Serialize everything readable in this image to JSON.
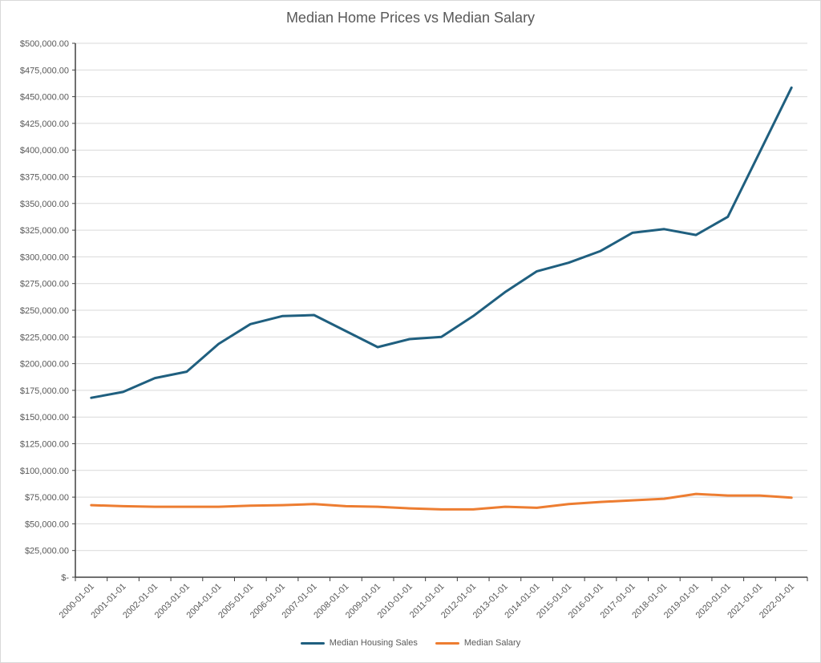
{
  "chart_data": {
    "type": "line",
    "title": "Median Home Prices vs Median Salary",
    "xlabel": "",
    "ylabel": "",
    "categories": [
      "2000-01-01",
      "2001-01-01",
      "2002-01-01",
      "2003-01-01",
      "2004-01-01",
      "2005-01-01",
      "2006-01-01",
      "2007-01-01",
      "2008-01-01",
      "2009-01-01",
      "2010-01-01",
      "2011-01-01",
      "2012-01-01",
      "2013-01-01",
      "2014-01-01",
      "2015-01-01",
      "2016-01-01",
      "2017-01-01",
      "2018-01-01",
      "2019-01-01",
      "2020-01-01",
      "2021-01-01",
      "2022-01-01"
    ],
    "ylim": [
      0,
      500000
    ],
    "y_tick_labels": [
      "$-",
      "$25,000.00",
      "$50,000.00",
      "$75,000.00",
      "$100,000.00",
      "$125,000.00",
      "$150,000.00",
      "$175,000.00",
      "$200,000.00",
      "$225,000.00",
      "$250,000.00",
      "$275,000.00",
      "$300,000.00",
      "$325,000.00",
      "$350,000.00",
      "$375,000.00",
      "$400,000.00",
      "$425,000.00",
      "$450,000.00",
      "$475,000.00",
      "$500,000.00"
    ],
    "y_tick_values": [
      0,
      25000,
      50000,
      75000,
      100000,
      125000,
      150000,
      175000,
      200000,
      225000,
      250000,
      275000,
      300000,
      325000,
      350000,
      375000,
      400000,
      425000,
      450000,
      475000,
      500000
    ],
    "grid": true,
    "legend_position": "bottom",
    "series": [
      {
        "name": "Median Housing Sales",
        "color": "#1f5f7f",
        "values": [
          168000,
          173500,
          186500,
          192500,
          218500,
          237000,
          244500,
          245500,
          230500,
          215500,
          223000,
          225000,
          244500,
          267000,
          286500,
          294500,
          305500,
          322500,
          326000,
          320500,
          337500,
          398000,
          458500
        ]
      },
      {
        "name": "Median Salary",
        "color": "#ed7d31",
        "values": [
          67500,
          66500,
          66000,
          66000,
          66000,
          67000,
          67500,
          68500,
          66500,
          66000,
          64500,
          63500,
          63500,
          66000,
          65000,
          68500,
          70500,
          72000,
          73500,
          78000,
          76500,
          76500,
          74500
        ]
      }
    ]
  }
}
